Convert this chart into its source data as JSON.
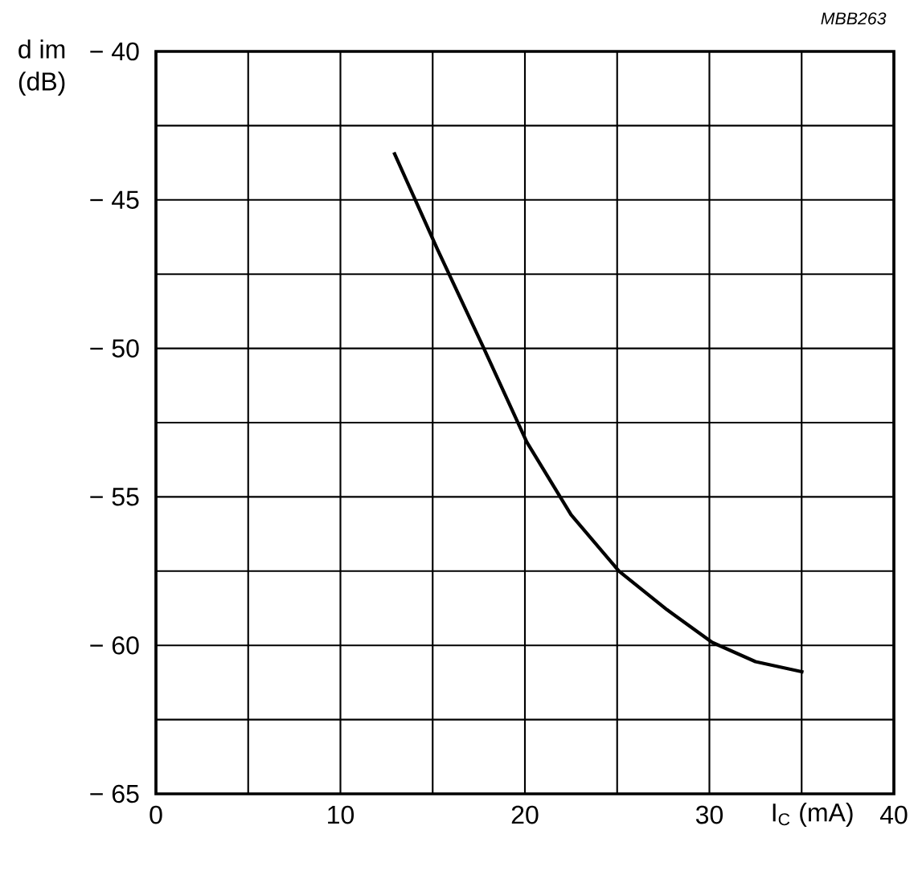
{
  "chart_data": {
    "type": "line",
    "xlabel": "I$_{C}$ (mA)",
    "ylabel": "d im\n(dB)",
    "annotations": [
      "MBB263"
    ],
    "x": [
      12.9,
      15.25,
      17.7,
      20.1,
      22.5,
      25.1,
      27.7,
      30.15,
      32.5,
      35.1
    ],
    "series": [
      {
        "color": "#000000",
        "values": [
          -43.4,
          -46.65,
          -49.9,
          -53.15,
          -55.6,
          -57.5,
          -58.8,
          -59.9,
          -60.55,
          -60.9
        ]
      }
    ],
    "xlim": [
      0,
      40
    ],
    "ylim": [
      -65,
      -40
    ],
    "xticks": [
      0,
      {
        "value": 5,
        "label": null
      },
      10,
      {
        "value": 15,
        "label": null
      },
      20,
      {
        "value": 25,
        "label": null
      },
      30,
      {
        "value": 35,
        "label": null
      },
      40
    ],
    "yticks": [
      {
        "value": -65,
        "label": "− 65"
      },
      {
        "value": -62.5,
        "label": null
      },
      {
        "value": -60,
        "label": "− 60"
      },
      {
        "value": -57.5,
        "label": null
      },
      {
        "value": -55,
        "label": "− 55"
      },
      {
        "value": -52.5,
        "label": null
      },
      {
        "value": -50,
        "label": "− 50"
      },
      {
        "value": -47.5,
        "label": null
      },
      {
        "value": -45,
        "label": "− 45"
      },
      {
        "value": -42.5,
        "label": null
      },
      {
        "value": -40,
        "label": "− 40"
      }
    ],
    "grid": true,
    "marker": "none",
    "line_style": "solid"
  }
}
